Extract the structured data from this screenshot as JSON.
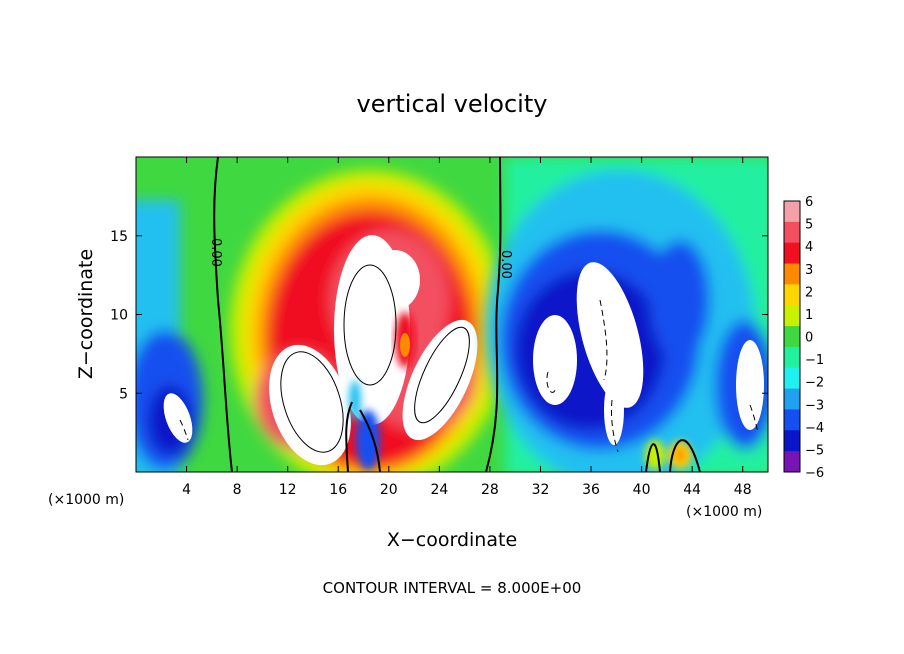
{
  "chart_data": {
    "type": "heatmap",
    "title": "vertical velocity",
    "xlabel": "X−coordinate",
    "ylabel": "Z−coordinate",
    "x_unit_label": "(×1000 m)",
    "x_unit_label_right": "(×1000 m)",
    "footer": "CONTOUR INTERVAL = 8.000E+00",
    "xlim": [
      0,
      50
    ],
    "ylim": [
      0,
      20
    ],
    "x_ticks": [
      4,
      8,
      12,
      16,
      20,
      24,
      28,
      32,
      36,
      40,
      44,
      48
    ],
    "y_ticks": [
      5,
      10,
      15
    ],
    "colorbar": {
      "ticks": [
        "6",
        "5",
        "4",
        "3",
        "2",
        "1",
        "0",
        "−1",
        "−2",
        "−3",
        "−4",
        "−5",
        "−6"
      ],
      "range": [
        -6,
        6
      ]
    },
    "zero_contour_labels": [
      "0.00",
      "0.00"
    ],
    "colors": {
      "c6": "#f4a0a8",
      "c5": "#f25060",
      "c4": "#f01020",
      "c3": "#ff8a00",
      "c2": "#ffd600",
      "c1": "#c8f000",
      "c0": "#40d840",
      "cm1": "#20f0a0",
      "cm2": "#20f0f0",
      "cm3": "#20a0f0",
      "cm4": "#1450f0",
      "cm5": "#0a14c8",
      "cm6": "#7814b4",
      "background": "#40d840"
    }
  }
}
